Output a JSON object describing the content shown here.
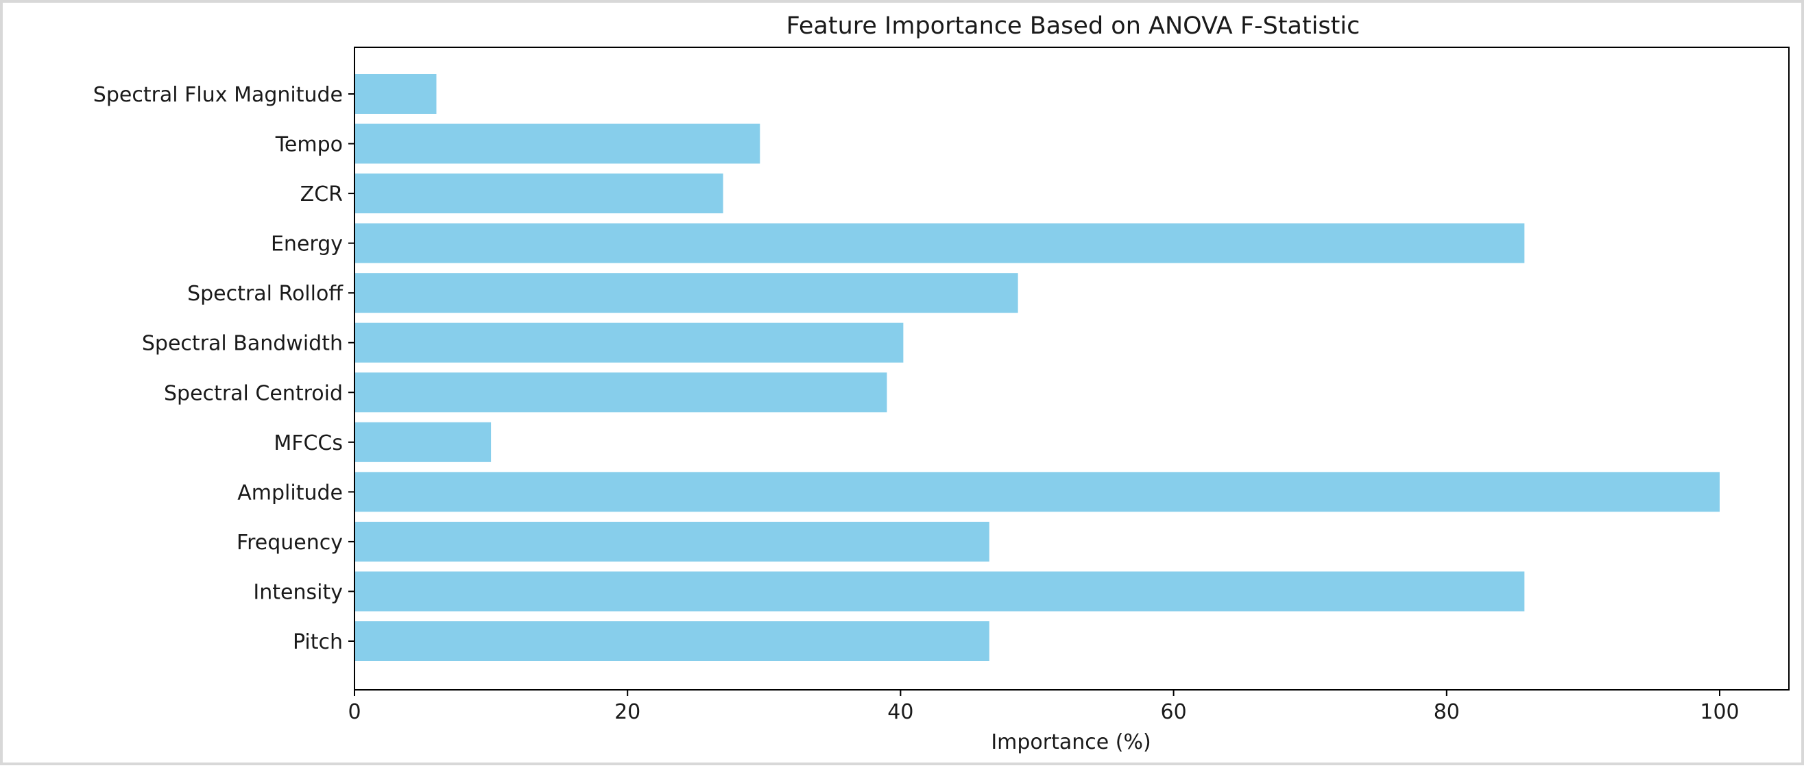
{
  "chart_data": {
    "type": "bar",
    "orientation": "horizontal",
    "title": "Feature Importance Based on ANOVA F-Statistic",
    "xlabel": "Importance (%)",
    "ylabel": "",
    "categories": [
      "Pitch",
      "Intensity",
      "Frequency",
      "Amplitude",
      "MFCCs",
      "Spectral Centroid",
      "Spectral Bandwidth",
      "Spectral Rolloff",
      "Energy",
      "ZCR",
      "Tempo",
      "Spectral Flux Magnitude"
    ],
    "values": [
      46.5,
      85.7,
      46.5,
      100,
      10,
      39,
      40.2,
      48.6,
      85.7,
      27,
      29.7,
      6
    ],
    "xlim": [
      0,
      105
    ],
    "xticks": [
      0,
      20,
      40,
      60,
      80,
      100
    ],
    "bar_color": "#87ceeb",
    "grid": false,
    "legend": "none"
  }
}
